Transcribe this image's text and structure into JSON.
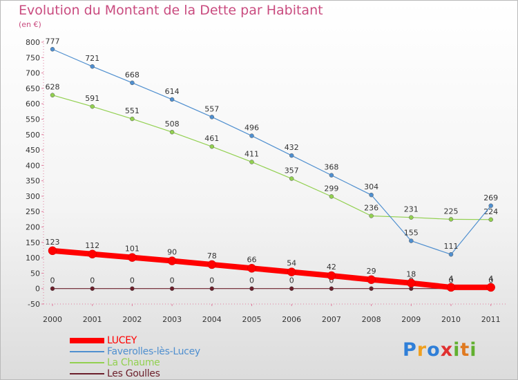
{
  "header": {
    "title": "Evolution du Montant de la Dette par Habitant",
    "unit": "(en €)"
  },
  "chart_data": {
    "type": "line",
    "title": "Evolution du Montant de la Dette par Habitant",
    "ylabel": "(en €)",
    "x": [
      "2000",
      "2001",
      "2002",
      "2003",
      "2004",
      "2005",
      "2006",
      "2007",
      "2008",
      "2009",
      "2010",
      "2011"
    ],
    "ylim": [
      -50,
      800
    ],
    "yticks": [
      -50,
      0,
      50,
      100,
      150,
      200,
      250,
      300,
      350,
      400,
      450,
      500,
      550,
      600,
      650,
      700,
      750,
      800
    ],
    "grid": false,
    "legend_position": "bottom-left",
    "series": [
      {
        "name": "Les Goulles",
        "color": "#6b1e2a",
        "values": [
          0,
          0,
          0,
          0,
          0,
          0,
          0,
          0,
          0,
          0,
          0,
          0
        ]
      },
      {
        "name": "La Chaume",
        "color": "#92d050",
        "values": [
          628,
          591,
          551,
          508,
          461,
          411,
          357,
          299,
          236,
          231,
          225,
          224
        ]
      },
      {
        "name": "Faverolles-lès-Lucey",
        "color": "#4f8fcf",
        "values": [
          777,
          721,
          668,
          614,
          557,
          496,
          432,
          368,
          304,
          155,
          111,
          269
        ]
      },
      {
        "name": "LUCEY",
        "color": "#ff0000",
        "values": [
          123,
          112,
          101,
          90,
          78,
          66,
          54,
          42,
          29,
          18,
          4,
          4
        ]
      }
    ]
  },
  "legend": {
    "items": [
      {
        "label": "LUCEY",
        "color": "#ff0000"
      },
      {
        "label": "Faverolles-lès-Lucey",
        "color": "#4f8fcf"
      },
      {
        "label": "La Chaume",
        "color": "#92d050"
      },
      {
        "label": "Les Goulles",
        "color": "#6b1e2a"
      }
    ]
  },
  "branding": {
    "logo_text": "Proxiti"
  }
}
